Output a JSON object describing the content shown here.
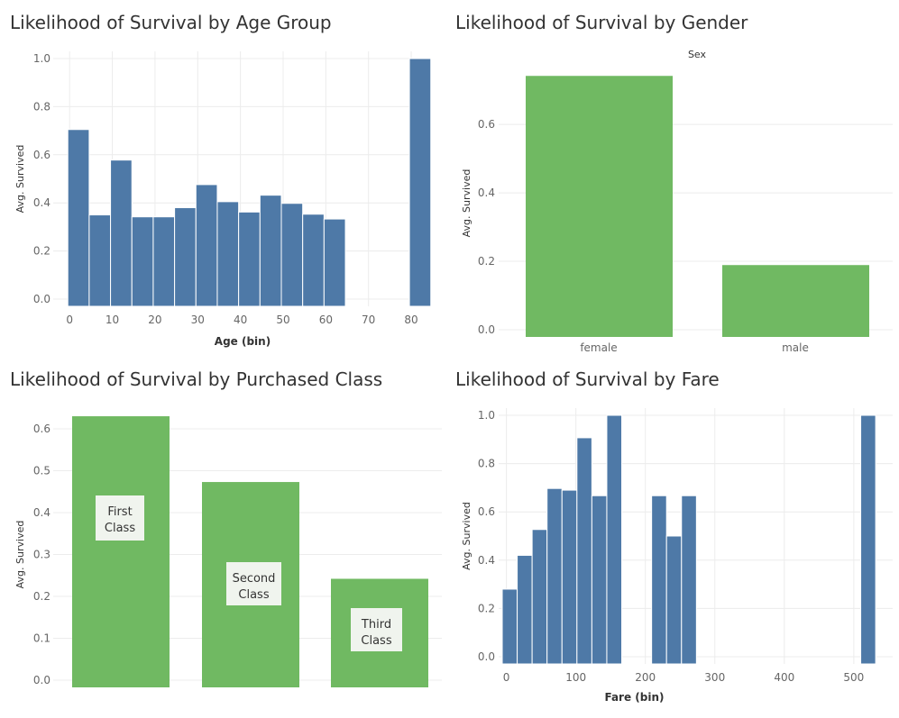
{
  "colors": {
    "blue": "#4e79a7",
    "green": "#70b962",
    "callout_bg": "#f0f4ee",
    "grid": "#ececec"
  },
  "chart_data": [
    {
      "id": "age",
      "type": "bar",
      "title": "Likelihood of Survival by Age Group",
      "xlabel": "Age (bin)",
      "ylabel": "Avg. Survived",
      "bin_width": 5,
      "x_start": [
        -0.42,
        4.58,
        9.58,
        14.58,
        19.58,
        24.58,
        29.58,
        34.58,
        39.58,
        44.58,
        49.58,
        54.58,
        59.58,
        64.58,
        69.58,
        74.58,
        79.58
      ],
      "values": [
        0.705,
        0.35,
        0.578,
        0.342,
        0.342,
        0.38,
        0.476,
        0.405,
        0.362,
        0.432,
        0.398,
        0.353,
        0.333,
        null,
        null,
        null,
        1.0
      ],
      "xticks": [
        0,
        10,
        20,
        30,
        40,
        50,
        60,
        70,
        80
      ],
      "yticks": [
        "0.0",
        "0.2",
        "0.4",
        "0.6",
        "0.8",
        "1.0"
      ],
      "ylim": [
        0,
        1.0
      ],
      "grid": true
    },
    {
      "id": "gender",
      "type": "bar",
      "title": "Likelihood of Survival by Gender",
      "header": "Sex",
      "ylabel": "Avg. Survived",
      "categories": [
        "female",
        "male"
      ],
      "values": [
        0.742,
        0.189
      ],
      "yticks": [
        "0.0",
        "0.2",
        "0.4",
        "0.6"
      ],
      "ylim": [
        0,
        0.74
      ],
      "grid": true
    },
    {
      "id": "class",
      "type": "bar",
      "title": "Likelihood of Survival by Purchased Class",
      "ylabel": "Avg. Survived",
      "categories": [
        "First Class",
        "Second Class",
        "Third Class"
      ],
      "label_lines": [
        [
          "First",
          "Class"
        ],
        [
          "Second",
          "Class"
        ],
        [
          "Third",
          "Class"
        ]
      ],
      "values": [
        0.63,
        0.473,
        0.242
      ],
      "yticks": [
        "0.0",
        "0.1",
        "0.2",
        "0.3",
        "0.4",
        "0.5",
        "0.6"
      ],
      "ylim": [
        0,
        0.6
      ],
      "grid": true
    },
    {
      "id": "fare",
      "type": "bar",
      "title": "Likelihood of Survival by Fare",
      "xlabel": "Fare (bin)",
      "ylabel": "Avg. Survived",
      "bin_width": 21.5,
      "x_start": [
        -6,
        15.5,
        37,
        58.5,
        80,
        101.5,
        123,
        144.5,
        166,
        209,
        230.5,
        252,
        510
      ],
      "values": [
        0.28,
        0.42,
        0.527,
        0.697,
        0.69,
        0.907,
        0.667,
        1.0,
        null,
        0.667,
        0.5,
        0.667,
        1.0
      ],
      "xticks": [
        0,
        100,
        200,
        300,
        400,
        500
      ],
      "yticks": [
        "0.0",
        "0.2",
        "0.4",
        "0.6",
        "0.8",
        "1.0"
      ],
      "ylim": [
        0,
        1.0
      ],
      "grid": true
    }
  ]
}
